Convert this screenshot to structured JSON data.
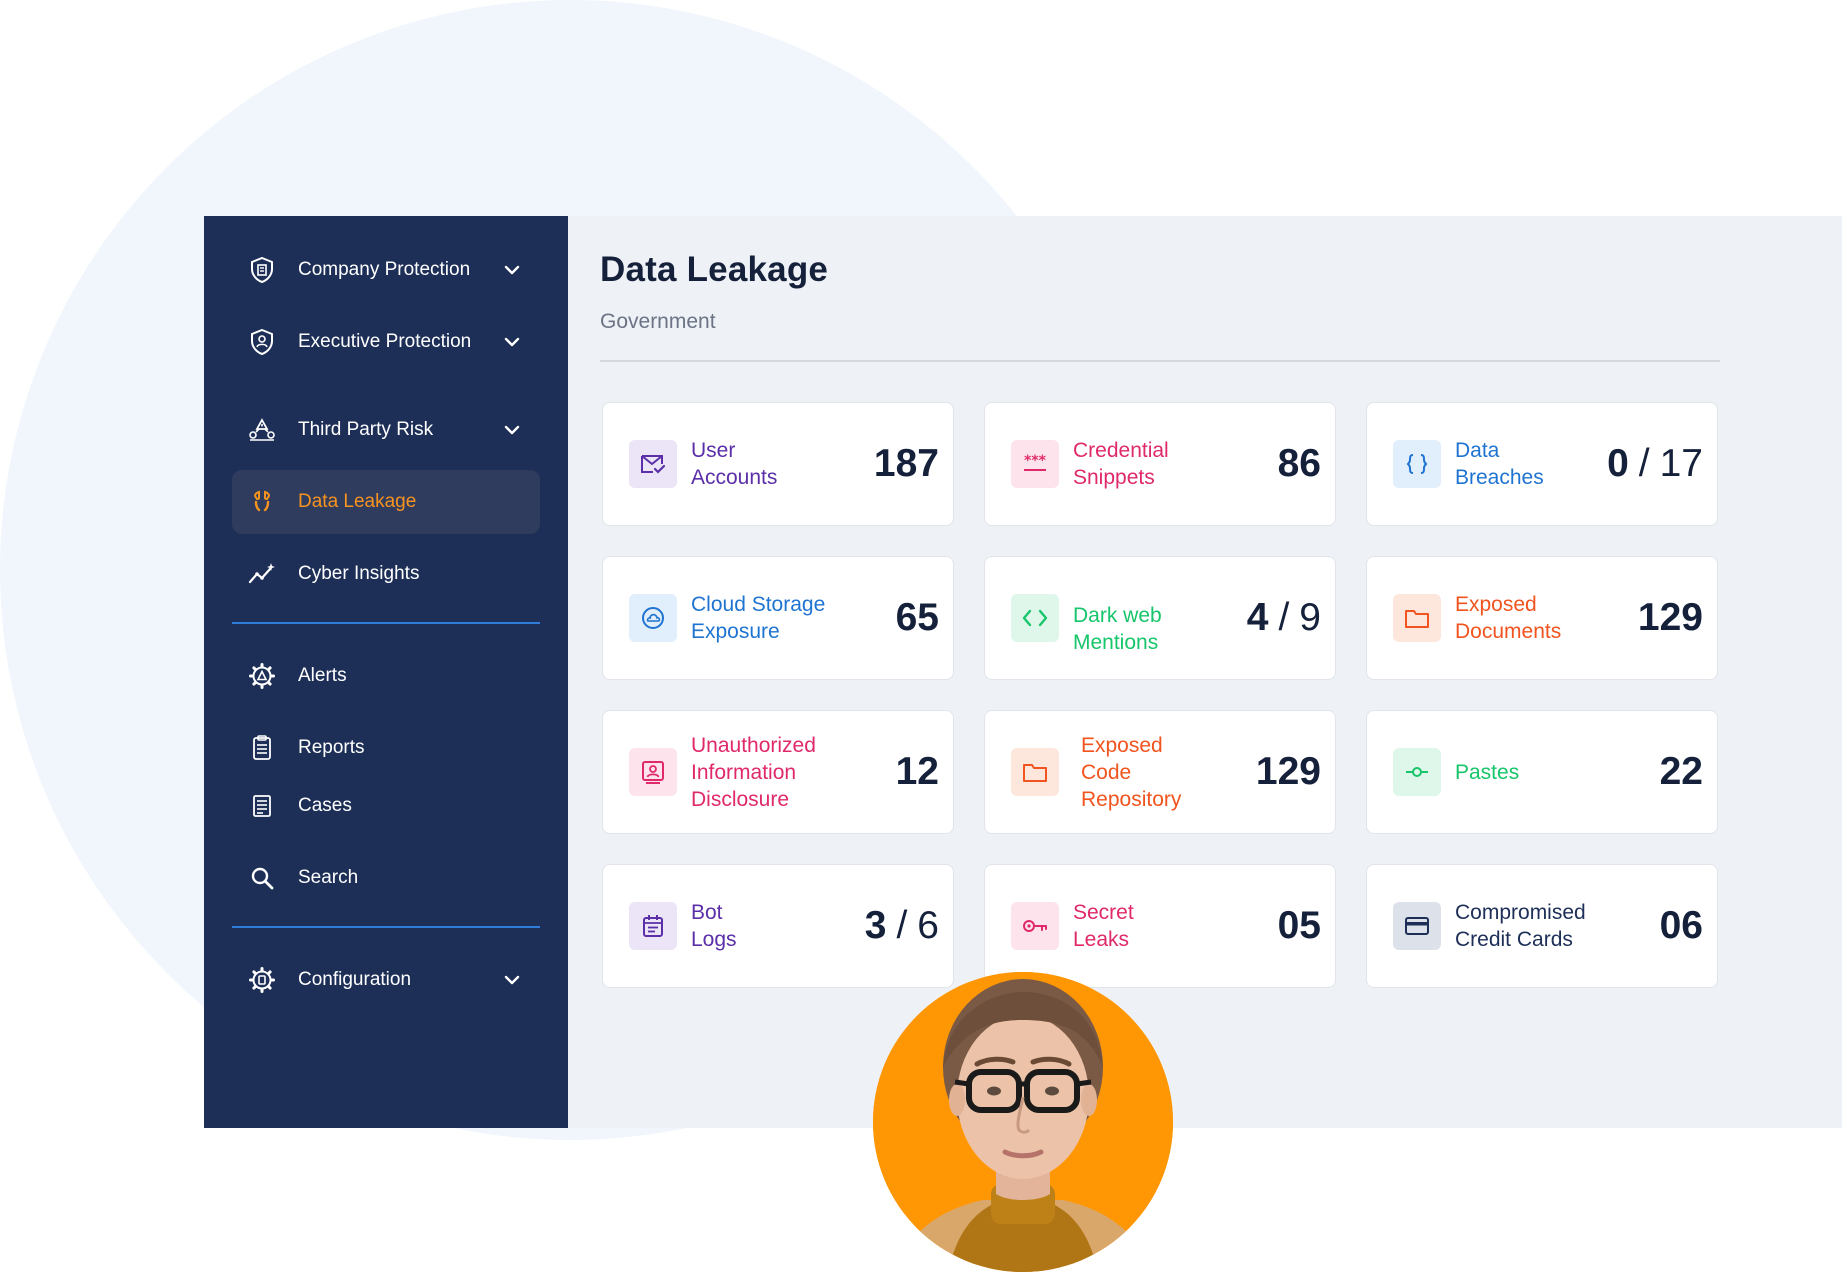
{
  "colors": {
    "sidebar_bg": "#1d2f57",
    "active_accent": "#f7931e",
    "divider": "#2f7bd8",
    "main_bg": "#eef1f6",
    "avatar_bg": "#ff9705"
  },
  "sidebar": {
    "items": [
      {
        "label": "Company Protection",
        "icon": "shield-building-icon",
        "has_chevron": true
      },
      {
        "label": "Executive Protection",
        "icon": "shield-user-icon",
        "has_chevron": true
      },
      {
        "label": "Third Party Risk",
        "icon": "third-party-risk-icon",
        "has_chevron": true
      },
      {
        "label": "Data Leakage",
        "icon": "drop-leak-icon",
        "active": true
      },
      {
        "label": "Cyber Insights",
        "icon": "sparkle-chart-icon"
      },
      {
        "label": "Alerts",
        "icon": "alert-gear-icon"
      },
      {
        "label": "Reports",
        "icon": "clipboard-icon"
      },
      {
        "label": "Cases",
        "icon": "document-list-icon"
      },
      {
        "label": "Search",
        "icon": "search-icon"
      },
      {
        "label": "Configuration",
        "icon": "settings-gear-icon",
        "has_chevron": true
      }
    ]
  },
  "main": {
    "title": "Data Leakage",
    "subtitle": "Government"
  },
  "cards": [
    {
      "label": "User\nAccounts",
      "value": "187",
      "color": "#5b2fa8",
      "icon_bg": "#ebe5f7",
      "icon": "user-accounts-icon"
    },
    {
      "label": "Credential\nSnippets",
      "value": "86",
      "color": "#e0296a",
      "icon_bg": "#fde4ec",
      "icon": "password-asterisks-icon"
    },
    {
      "label": "Data\nBreaches",
      "value": "0",
      "value_total": "17",
      "color": "#1f74d1",
      "icon_bg": "#e1eefb",
      "icon": "braces-icon"
    },
    {
      "label": "Cloud Storage\nExposure",
      "value": "65",
      "color": "#1f74d1",
      "icon_bg": "#e1eefb",
      "icon": "cloud-icon"
    },
    {
      "label": "Dark web\nMentions",
      "value": "4",
      "value_total": "9",
      "color": "#17c56a",
      "icon_bg": "#dff7ea",
      "icon": "code-brackets-icon"
    },
    {
      "label": "Exposed\nDocuments",
      "value": "129",
      "color": "#f1541e",
      "icon_bg": "#fde7dc",
      "icon": "folder-icon"
    },
    {
      "label": "Unauthorized\nInformation\nDisclosure",
      "value": "12",
      "color": "#e0296a",
      "icon_bg": "#fde4ec",
      "icon": "id-card-icon"
    },
    {
      "label": "Exposed\nCode\nRepository",
      "value": "129",
      "color": "#f1541e",
      "icon_bg": "#fde7dc",
      "icon": "folder-code-icon"
    },
    {
      "label": "Pastes",
      "value": "22",
      "color": "#17c56a",
      "icon_bg": "#dff7ea",
      "icon": "commit-icon"
    },
    {
      "label": "Bot\nLogs",
      "value": "3",
      "value_total": "6",
      "color": "#5b2fa8",
      "icon_bg": "#ebe5f7",
      "icon": "calendar-log-icon"
    },
    {
      "label": "Secret\nLeaks",
      "value": "05",
      "color": "#e0296a",
      "icon_bg": "#fde4ec",
      "icon": "key-icon"
    },
    {
      "label": "Compromised\nCredit Cards",
      "value": "06",
      "color": "#1d2f57",
      "icon_bg": "#dde1e9",
      "icon": "credit-card-icon"
    }
  ]
}
